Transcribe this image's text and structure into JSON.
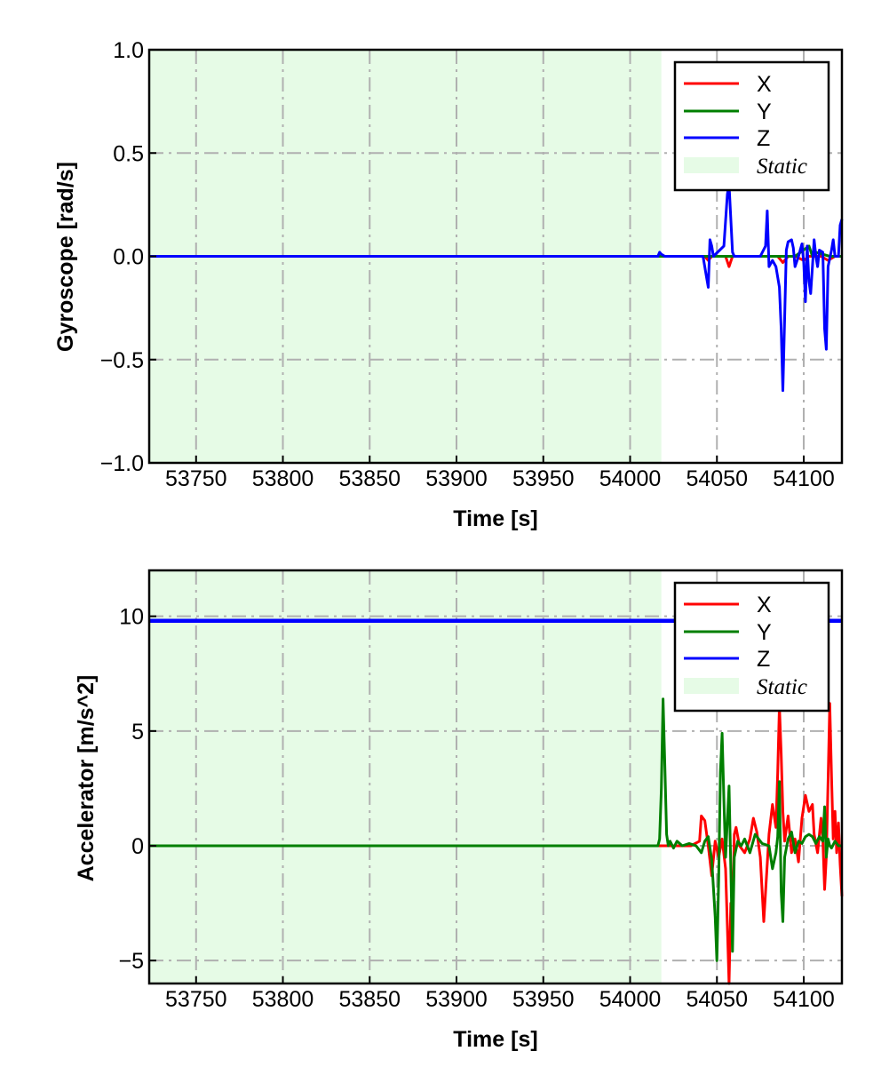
{
  "colors": {
    "X": "#ff0000",
    "Y": "#007f00",
    "Z": "#0000ff",
    "static_fill": "#e6fbe6",
    "grid": "#b0b0b0"
  },
  "chart_data": [
    {
      "type": "line",
      "xlabel": "Time [s]",
      "ylabel": "Gyroscope [rad/s]",
      "xlim": [
        53723,
        54122
      ],
      "ylim": [
        -1.0,
        1.0
      ],
      "xticks": [
        53750,
        53800,
        53850,
        53900,
        53950,
        54000,
        54050,
        54100
      ],
      "xtick_labels": [
        "53750",
        "53800",
        "53850",
        "53900",
        "53950",
        "54000",
        "54050",
        "54100"
      ],
      "yticks": [
        -1.0,
        -0.5,
        0.0,
        0.5,
        1.0
      ],
      "ytick_labels": [
        "−1.0",
        "−0.5",
        "0.0",
        "0.5",
        "1.0"
      ],
      "grid": true,
      "legend_position": "top-right",
      "legend": [
        "X",
        "Y",
        "Z",
        "Static"
      ],
      "static_interval": [
        53723,
        54018
      ],
      "series": [
        {
          "name": "X",
          "x": [
            53723,
            54018,
            54043,
            54045,
            54047,
            54055,
            54057,
            54059,
            54061,
            54070,
            54080,
            54085,
            54088,
            54091,
            54095,
            54100,
            54103,
            54106,
            54110,
            54114,
            54118,
            54122
          ],
          "y": [
            0,
            0,
            0,
            -0.02,
            0,
            0,
            -0.05,
            0,
            0,
            0,
            0,
            0,
            -0.03,
            0,
            0,
            -0.02,
            0,
            0,
            0,
            -0.02,
            0,
            0
          ]
        },
        {
          "name": "Y",
          "x": [
            53723,
            54018,
            54050,
            54060,
            54070,
            54085,
            54095,
            54103,
            54105,
            54107,
            54115,
            54122
          ],
          "y": [
            0,
            0,
            0,
            0,
            0,
            0,
            0,
            0.05,
            0,
            0.02,
            0,
            0
          ]
        },
        {
          "name": "Z",
          "x": [
            53723,
            54016,
            54017,
            54018,
            54020,
            54042,
            54044,
            54045,
            54046,
            54047,
            54048,
            54054,
            54056,
            54057,
            54058,
            54059,
            54060,
            54062,
            54064,
            54070,
            54075,
            54078,
            54079,
            54080,
            54082,
            54084,
            54086,
            54087,
            54088,
            54089,
            54090,
            54091,
            54093,
            54094,
            54095,
            54097,
            54099,
            54100,
            54101,
            54102,
            54103,
            54104,
            54105,
            54106,
            54107,
            54108,
            54109,
            54111,
            54112,
            54113,
            54114,
            54116,
            54117,
            54118,
            54120,
            54121,
            54122
          ],
          "y": [
            0,
            0,
            0.02,
            0.01,
            0,
            0,
            -0.1,
            -0.15,
            0.08,
            0.05,
            0,
            0.05,
            0.3,
            0.35,
            0.18,
            0.02,
            0,
            0,
            0,
            0,
            0,
            0.05,
            0.22,
            -0.05,
            -0.02,
            -0.05,
            -0.15,
            -0.35,
            -0.65,
            -0.3,
            0.03,
            0.07,
            0.08,
            0.04,
            -0.05,
            0,
            0.06,
            -0.03,
            -0.22,
            0.05,
            -0.12,
            -0.18,
            -0.05,
            0.08,
            0,
            -0.05,
            0.03,
            0.02,
            -0.35,
            -0.45,
            -0.05,
            0.03,
            0.08,
            0,
            0,
            0.15,
            0.18
          ]
        }
      ]
    },
    {
      "type": "line",
      "xlabel": "Time [s]",
      "ylabel": "Accelerator [m/s^2]",
      "xlim": [
        53723,
        54122
      ],
      "ylim": [
        -6,
        12
      ],
      "xticks": [
        53750,
        53800,
        53850,
        53900,
        53950,
        54000,
        54050,
        54100
      ],
      "xtick_labels": [
        "53750",
        "53800",
        "53850",
        "53900",
        "53950",
        "54000",
        "54050",
        "54100"
      ],
      "yticks": [
        -5,
        0,
        5,
        10
      ],
      "ytick_labels": [
        "−5",
        "0",
        "5",
        "10"
      ],
      "grid": true,
      "legend_position": "top-right",
      "legend": [
        "X",
        "Y",
        "Z",
        "Static"
      ],
      "static_interval": [
        53723,
        54018
      ],
      "series": [
        {
          "name": "X",
          "x": [
            53723,
            54018,
            54035,
            54040,
            54041,
            54043,
            54045,
            54047,
            54049,
            54051,
            54053,
            54055,
            54056,
            54057,
            54058,
            54059,
            54060,
            54061,
            54063,
            54066,
            54069,
            54071,
            54073,
            54075,
            54077,
            54079,
            54080,
            54082,
            54084,
            54085,
            54086,
            54087,
            54088,
            54089,
            54091,
            54093,
            54095,
            54097,
            54099,
            54101,
            54103,
            54105,
            54106,
            54108,
            54110,
            54111,
            54112,
            54113,
            54114,
            54115,
            54116,
            54117,
            54118,
            54119,
            54120,
            54121,
            54122
          ],
          "y": [
            0,
            0,
            0,
            0.2,
            1.3,
            1.1,
            0,
            -1.3,
            0.2,
            -0.5,
            0.3,
            -1.0,
            -3.5,
            -6.0,
            -2.5,
            -3.5,
            0.5,
            0.8,
            0,
            -0.3,
            0.3,
            1.2,
            0.6,
            -0.5,
            -3.3,
            -0.8,
            0.5,
            1.8,
            0.8,
            3.2,
            6.1,
            4.0,
            1.5,
            0.2,
            1.3,
            -0.3,
            0.3,
            -0.7,
            1.2,
            2.2,
            1.5,
            1.8,
            0.5,
            -0.3,
            1.2,
            0.3,
            -1.9,
            -0.5,
            2.8,
            6.2,
            3.0,
            0.3,
            1.5,
            -0.3,
            1.0,
            -0.8,
            -2.2
          ]
        },
        {
          "name": "Y",
          "x": [
            53723,
            54016,
            54017,
            54018,
            54019,
            54020,
            54021,
            54022,
            54023,
            54025,
            54027,
            54030,
            54034,
            54038,
            54041,
            54043,
            54045,
            54047,
            54049,
            54050,
            54051,
            54052,
            54053,
            54054,
            54055,
            54057,
            54058,
            54059,
            54060,
            54062,
            54064,
            54066,
            54069,
            54072,
            54076,
            54080,
            54082,
            54084,
            54085,
            54086,
            54087,
            54088,
            54089,
            54091,
            54093,
            54095,
            54097,
            54099,
            54101,
            54103,
            54105,
            54107,
            54109,
            54111,
            54112,
            54113,
            54114,
            54115,
            54116,
            54118,
            54120,
            54122
          ],
          "y": [
            0,
            0,
            0.3,
            2.5,
            6.4,
            3.5,
            0.5,
            0,
            0.2,
            -0.1,
            0.2,
            0,
            0.1,
            0,
            -0.3,
            0.2,
            0.4,
            -0.6,
            -3.1,
            -5.0,
            -1.5,
            3.2,
            4.9,
            2.0,
            -0.5,
            2.6,
            -1.0,
            -4.6,
            -0.5,
            0.2,
            0,
            0.3,
            -0.3,
            0.5,
            0.1,
            0,
            -1.0,
            -0.3,
            0.4,
            2.8,
            -2.0,
            -3.3,
            -0.5,
            0.3,
            0.6,
            -0.3,
            0.2,
            0.1,
            0.4,
            0.5,
            0.4,
            0.1,
            0.4,
            0.2,
            1.7,
            -0.5,
            0.3,
            0,
            -0.1,
            0.2,
            0,
            0
          ]
        },
        {
          "name": "Z",
          "x": [
            53723,
            53760,
            53800,
            53850,
            53900,
            53950,
            54000,
            54020,
            54050,
            54080,
            54114,
            54115,
            54122
          ],
          "y": [
            9.8,
            9.8,
            9.8,
            9.8,
            9.8,
            9.8,
            9.8,
            9.8,
            9.8,
            9.8,
            9.8,
            9.8,
            9.8
          ]
        }
      ]
    }
  ]
}
